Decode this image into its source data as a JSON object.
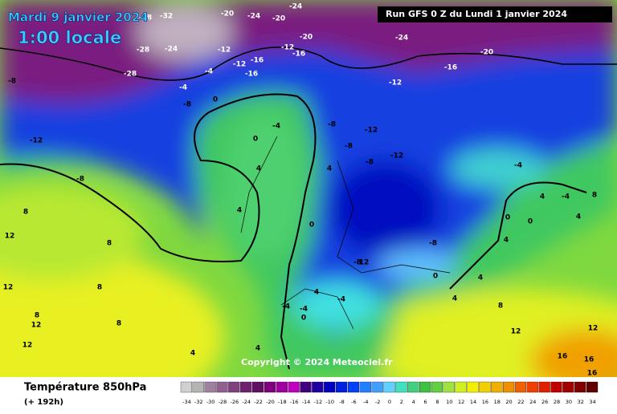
{
  "map": {
    "valid_date": "Mardi 9 janvier 2024",
    "local_time": "1:00 locale",
    "run": "Run GFS 0 Z du Lundi 1 janvier 2024",
    "copyright": "Copyright © 2024 Meteociel.fr",
    "contour_labels": [
      "-28",
      "-32",
      "-20",
      "-24",
      "-20",
      "-24",
      "-20",
      "-24",
      "-20",
      "-28",
      "-24",
      "-28",
      "-12",
      "-16",
      "-12",
      "-16",
      "-12",
      "-16",
      "-4",
      "-12",
      "-16",
      "-8",
      "-4",
      "-8",
      "0",
      "-12",
      "-8",
      "-8",
      "-12",
      "-8",
      "-12",
      "-8",
      "-4",
      "0",
      "4",
      "4",
      "-4",
      "-4",
      "8",
      "8",
      "4",
      "0",
      "0",
      "4",
      "0",
      "4",
      "12",
      "8",
      "12",
      "-8",
      "-8",
      "0",
      "4",
      "4",
      "8",
      "12",
      "8",
      "12",
      "-4",
      "-4",
      "0",
      "-4",
      "4",
      "4",
      "8",
      "12",
      "12",
      "8",
      "12",
      "4",
      "4",
      "16",
      "16",
      "16"
    ]
  },
  "legend": {
    "title": "Température 850hPa",
    "lead": "(+ 192h)",
    "values": [
      -34,
      -32,
      -30,
      -28,
      -26,
      -24,
      -22,
      -20,
      -18,
      -16,
      -14,
      -12,
      -10,
      -8,
      -6,
      -4,
      -2,
      0,
      2,
      4,
      6,
      8,
      10,
      12,
      14,
      16,
      18,
      20,
      22,
      24,
      26,
      28,
      30,
      32,
      34
    ],
    "colors": [
      "#d0d0d0",
      "#b4b4b4",
      "#a080a0",
      "#906090",
      "#804080",
      "#702070",
      "#601060",
      "#800080",
      "#a000a0",
      "#c000c0",
      "#400080",
      "#2000a0",
      "#0000c0",
      "#0020e0",
      "#0040ff",
      "#2080ff",
      "#40a0ff",
      "#60d0ff",
      "#40e0c0",
      "#40d080",
      "#40c040",
      "#60d040",
      "#a0e040",
      "#d0f020",
      "#f0f000",
      "#f0d000",
      "#f0b000",
      "#f09000",
      "#f06000",
      "#f04000",
      "#e02000",
      "#c00000",
      "#a00000",
      "#800000",
      "#600000"
    ]
  }
}
